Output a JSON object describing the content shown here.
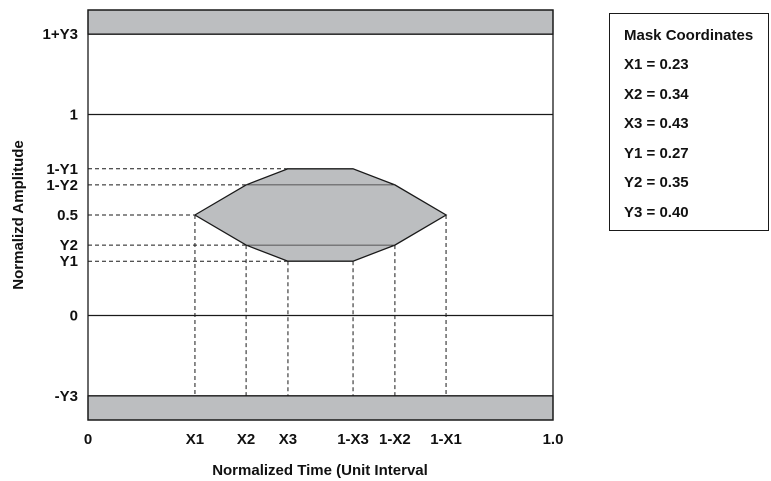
{
  "chart_data": {
    "type": "diagram",
    "xlabel": "Normalized Time (Unit Interval",
    "ylabel": "Normalizd Amplitude",
    "xlim": [
      0,
      1
    ],
    "ylim": [
      -0.52,
      1.52
    ],
    "x_ticks": [
      {
        "label": "0",
        "value": 0
      },
      {
        "label": "X1",
        "value": 0.23
      },
      {
        "label": "X2",
        "value": 0.34
      },
      {
        "label": "X3",
        "value": 0.43
      },
      {
        "label": "1-X3",
        "value": 0.57
      },
      {
        "label": "1-X2",
        "value": 0.66
      },
      {
        "label": "1-X1",
        "value": 0.77
      },
      {
        "label": "1.0",
        "value": 1.0
      }
    ],
    "y_ticks": [
      {
        "label": "1+Y3",
        "value": 1.4
      },
      {
        "label": "1",
        "value": 1.0
      },
      {
        "label": "1-Y1",
        "value": 0.73
      },
      {
        "label": "1-Y2",
        "value": 0.65
      },
      {
        "label": "0.5",
        "value": 0.5
      },
      {
        "label": "Y2",
        "value": 0.35
      },
      {
        "label": "Y1",
        "value": 0.27
      },
      {
        "label": "0",
        "value": 0.0
      },
      {
        "label": "-Y3",
        "value": -0.4
      }
    ],
    "mask_polygon": [
      [
        0.23,
        0.5
      ],
      [
        0.34,
        0.65
      ],
      [
        0.43,
        0.73
      ],
      [
        0.57,
        0.73
      ],
      [
        0.66,
        0.65
      ],
      [
        0.77,
        0.5
      ],
      [
        0.66,
        0.35
      ],
      [
        0.57,
        0.27
      ],
      [
        0.43,
        0.27
      ],
      [
        0.34,
        0.35
      ]
    ],
    "top_region": [
      1.4,
      1.52
    ],
    "bottom_region": [
      -0.52,
      -0.4
    ],
    "reference_levels": [
      1.4,
      1.0,
      0.0,
      -0.4
    ],
    "colors": {
      "mask_fill": "#bcbec0",
      "line": "#1a1a1a"
    }
  },
  "legend": {
    "title": "Mask Coordinates",
    "entries": [
      "X1 = 0.23",
      "X2 = 0.34",
      "X3 = 0.43",
      "Y1 = 0.27",
      "Y2 = 0.35",
      "Y3 = 0.40"
    ]
  }
}
